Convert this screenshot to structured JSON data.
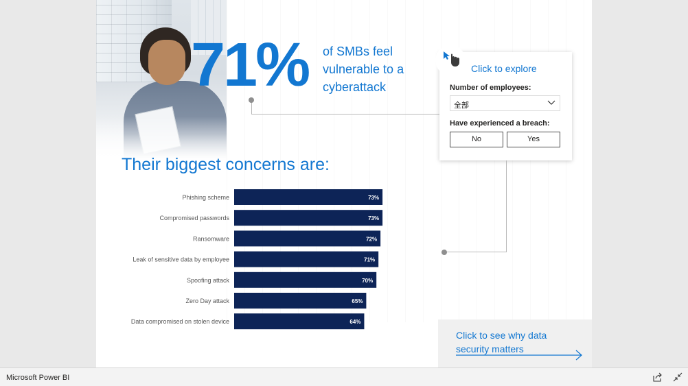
{
  "report": {
    "stat_value": "71%",
    "stat_description": "of SMBs feel vulnerable to a cyberattack",
    "concerns_title": "Their biggest concerns are:"
  },
  "explore": {
    "label": "Click to explore",
    "employees_label": "Number of employees:",
    "employees_value": "全部",
    "breach_label": "Have experienced a breach:",
    "breach_options": [
      "No",
      "Yes"
    ]
  },
  "why_link": {
    "text": "Click to see why data security matters"
  },
  "footer": {
    "app_title": "Microsoft Power BI",
    "share_icon": "share-icon",
    "exit_fullscreen_icon": "exit-fullscreen-icon"
  },
  "colors": {
    "accent": "#1277d1",
    "bar": "#0d2457",
    "bar_label": "#ffffff",
    "background": "#e9e9e9"
  },
  "chart_data": {
    "type": "bar",
    "orientation": "horizontal",
    "categories": [
      "Phishing scheme",
      "Compromised passwords",
      "Ransomware",
      "Leak of sensitive data by employee",
      "Spoofing attack",
      "Zero Day attack",
      "Data compromised on stolen device"
    ],
    "values": [
      73,
      73,
      72,
      71,
      70,
      65,
      64
    ],
    "value_labels": [
      "73%",
      "73%",
      "72%",
      "71%",
      "70%",
      "65%",
      "64%"
    ],
    "xlim": [
      0,
      100
    ],
    "grid": false,
    "legend": "none"
  }
}
